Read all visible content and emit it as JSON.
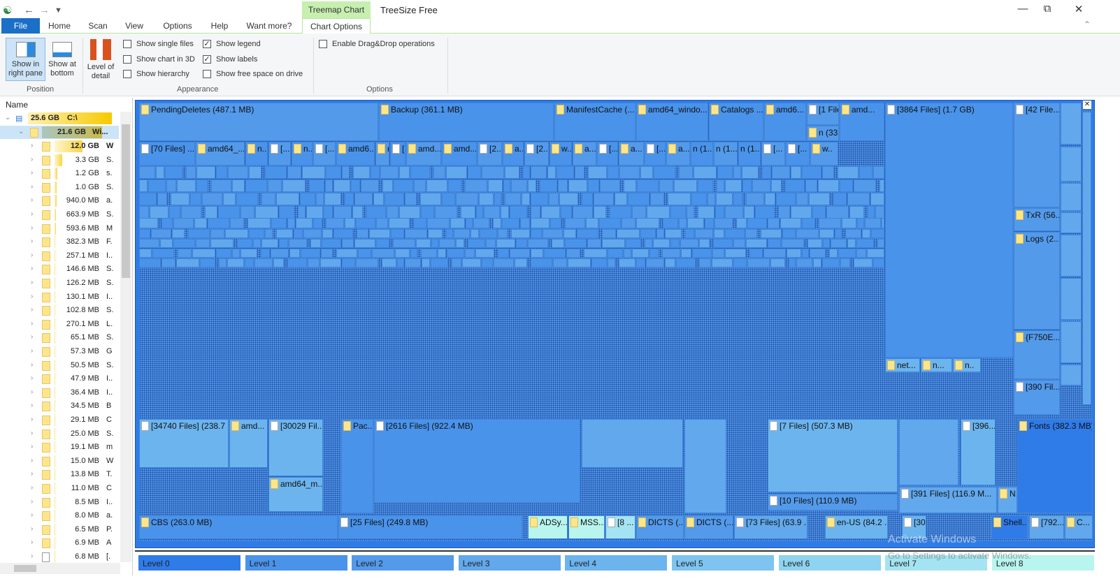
{
  "titlebar": {
    "app_title": "TreeSize Free",
    "context_tab": "Treemap Chart"
  },
  "tabs": [
    "File",
    "Home",
    "Scan",
    "View",
    "Options",
    "Help",
    "Want more?",
    "Chart Options"
  ],
  "ribbon": {
    "position": {
      "label": "Position",
      "show_right": "Show in right pane",
      "show_bottom": "Show at bottom"
    },
    "level_of_detail": "Level of detail",
    "appearance": {
      "label": "Appearance",
      "items": [
        {
          "label": "Show single files",
          "checked": false
        },
        {
          "label": "Show chart in 3D",
          "checked": false
        },
        {
          "label": "Show hierarchy",
          "checked": false
        },
        {
          "label": "Show legend",
          "checked": true
        },
        {
          "label": "Show labels",
          "checked": true
        },
        {
          "label": "Show free space on drive",
          "checked": false
        }
      ]
    },
    "options": {
      "label": "Options",
      "items": [
        {
          "label": "Enable Drag&Drop operations",
          "checked": false
        }
      ]
    }
  },
  "tree": {
    "header": "Name",
    "root": {
      "size": "25.6 GB",
      "name": "C:\\"
    },
    "selected": {
      "size": "21.6 GB",
      "name": "Wi..."
    },
    "items": [
      {
        "size": "12.0 GB",
        "name": "W",
        "icon": "folder"
      },
      {
        "size": "3.3 GB",
        "name": "S.",
        "icon": "folder"
      },
      {
        "size": "1.2 GB",
        "name": "s.",
        "icon": "folder"
      },
      {
        "size": "1.0 GB",
        "name": "S.",
        "icon": "folder"
      },
      {
        "size": "940.0 MB",
        "name": "a.",
        "icon": "folder"
      },
      {
        "size": "663.9 MB",
        "name": "S.",
        "icon": "folder"
      },
      {
        "size": "593.6 MB",
        "name": "M",
        "icon": "folder"
      },
      {
        "size": "382.3 MB",
        "name": "F.",
        "icon": "folder"
      },
      {
        "size": "257.1 MB",
        "name": "I..",
        "icon": "folder"
      },
      {
        "size": "146.6 MB",
        "name": "S.",
        "icon": "folder"
      },
      {
        "size": "126.2 MB",
        "name": "S.",
        "icon": "folder"
      },
      {
        "size": "130.1 MB",
        "name": "I..",
        "icon": "folder"
      },
      {
        "size": "102.8 MB",
        "name": "S.",
        "icon": "folder"
      },
      {
        "size": "270.1 MB",
        "name": "L.",
        "icon": "folder"
      },
      {
        "size": "65.1 MB",
        "name": "S.",
        "icon": "folder"
      },
      {
        "size": "57.3 MB",
        "name": "G",
        "icon": "folder"
      },
      {
        "size": "50.5 MB",
        "name": "S.",
        "icon": "folder"
      },
      {
        "size": "47.9 MB",
        "name": "I..",
        "icon": "folder"
      },
      {
        "size": "36.4 MB",
        "name": "I..",
        "icon": "folder"
      },
      {
        "size": "34.5 MB",
        "name": "B",
        "icon": "folder"
      },
      {
        "size": "29.1 MB",
        "name": "C",
        "icon": "folder"
      },
      {
        "size": "25.0 MB",
        "name": "S.",
        "icon": "folder"
      },
      {
        "size": "19.1 MB",
        "name": "m",
        "icon": "folder"
      },
      {
        "size": "15.0 MB",
        "name": "W",
        "icon": "folder"
      },
      {
        "size": "13.8 MB",
        "name": "T.",
        "icon": "folder"
      },
      {
        "size": "11.0 MB",
        "name": "C",
        "icon": "folder"
      },
      {
        "size": "8.5 MB",
        "name": "I..",
        "icon": "folder"
      },
      {
        "size": "8.0 MB",
        "name": "a.",
        "icon": "folder"
      },
      {
        "size": "6.5 MB",
        "name": "P.",
        "icon": "folder"
      },
      {
        "size": "6.9 MB",
        "name": "A",
        "icon": "folder"
      },
      {
        "size": "6.8 MB",
        "name": "[.",
        "icon": "file"
      }
    ]
  },
  "treemap": {
    "tiles": [
      {
        "label": "PendingDeletes (487.1 MB)",
        "icon": "folder",
        "level": 2
      },
      {
        "label": "Backup (361.1 MB)",
        "icon": "folder",
        "level": 1
      },
      {
        "label": "ManifestCache (...",
        "icon": "folder",
        "level": 1
      },
      {
        "label": "amd64_windo...",
        "icon": "folder",
        "level": 1
      },
      {
        "label": "Catalogs ...",
        "icon": "folder",
        "level": 1
      },
      {
        "label": "amd6...",
        "icon": "folder",
        "level": 1
      },
      {
        "label": "[1 File...",
        "icon": "file",
        "level": 2
      },
      {
        "label": "n (33....",
        "icon": "folder",
        "level": 2
      },
      {
        "label": "amd...",
        "icon": "folder",
        "level": 1
      },
      {
        "label": "[3864 Files] (1.7 GB)",
        "icon": "file",
        "level": 1
      },
      {
        "label": "[42 File...",
        "icon": "file",
        "level": 2
      },
      {
        "label": "TxR (56...",
        "icon": "folder",
        "level": 2
      },
      {
        "label": "Logs (2...",
        "icon": "folder",
        "level": 2
      },
      {
        "label": "{F750E...",
        "icon": "folder",
        "level": 2
      },
      {
        "label": "[390 Fil...",
        "icon": "file",
        "level": 2
      },
      {
        "label": "[34740 Files] (238.7 ...",
        "icon": "file",
        "level": 4
      },
      {
        "label": "amd...",
        "icon": "folder",
        "level": 4
      },
      {
        "label": "[30029 Fil...",
        "icon": "file",
        "level": 4
      },
      {
        "label": "amd64_m...",
        "icon": "folder",
        "level": 4
      },
      {
        "label": "Pac...",
        "icon": "folder",
        "level": 1
      },
      {
        "label": "[2616 Files] (922.4 MB)",
        "icon": "file",
        "level": 1
      },
      {
        "label": "[7 Files] (507.3 MB)",
        "icon": "file",
        "level": 4
      },
      {
        "label": "[10 Files] (110.9 MB)",
        "icon": "file",
        "level": 2
      },
      {
        "label": "[396...",
        "icon": "file",
        "level": 4
      },
      {
        "label": "Fonts (382.3 MB)",
        "icon": "folder",
        "level": 0
      },
      {
        "label": "[391 Files] (116.9 M...",
        "icon": "file",
        "level": 3
      },
      {
        "label": "N...",
        "icon": "folder",
        "level": 3
      },
      {
        "label": "CBS (263.0 MB)",
        "icon": "folder",
        "level": 1
      },
      {
        "label": "[25 Files] (249.8 MB)",
        "icon": "file",
        "level": 1
      },
      {
        "label": "ADSy...",
        "icon": "folder",
        "level": 8
      },
      {
        "label": "MSS...",
        "icon": "folder",
        "level": 8
      },
      {
        "label": "[8 ...",
        "icon": "file",
        "level": 7
      },
      {
        "label": "DICTS (...",
        "icon": "folder",
        "level": 2
      },
      {
        "label": "DICTS (...",
        "icon": "folder",
        "level": 2
      },
      {
        "label": "[73 Files] (63.9 ...",
        "icon": "file",
        "level": 3
      },
      {
        "label": "en-US (84.2 ...",
        "icon": "folder",
        "level": 4
      },
      {
        "label": "[30...",
        "icon": "file",
        "level": 4
      },
      {
        "label": "Shell...",
        "icon": "folder",
        "level": 0
      },
      {
        "label": "[792...",
        "icon": "file",
        "level": 3
      },
      {
        "label": "C...",
        "icon": "folder",
        "level": 3
      },
      {
        "label": "net...",
        "icon": "folder",
        "level": 4
      },
      {
        "label": "n...",
        "icon": "folder",
        "level": 4
      },
      {
        "label": "n..",
        "icon": "folder",
        "level": 4
      }
    ],
    "row_labels": [
      {
        "label": "[70 Files] ...",
        "icon": "file"
      },
      {
        "label": "amd64_...",
        "icon": "folder"
      },
      {
        "label": "n..",
        "icon": "folder"
      },
      {
        "label": "[...",
        "icon": "file"
      },
      {
        "label": "n..",
        "icon": "folder"
      },
      {
        "label": "[...",
        "icon": "file"
      },
      {
        "label": "amd6...",
        "icon": "folder"
      },
      {
        "label": "n.",
        "icon": "folder"
      },
      {
        "label": "[..",
        "icon": "file"
      },
      {
        "label": "amd...",
        "icon": "folder"
      },
      {
        "label": "amd...",
        "icon": "folder"
      },
      {
        "label": "[2...",
        "icon": "file"
      },
      {
        "label": "a...",
        "icon": "folder"
      },
      {
        "label": "[2...",
        "icon": "file"
      },
      {
        "label": "w...",
        "icon": "folder"
      },
      {
        "label": "a...",
        "icon": "folder"
      },
      {
        "label": "[...",
        "icon": "file"
      },
      {
        "label": "a...",
        "icon": "folder"
      },
      {
        "label": "[...",
        "icon": "file"
      },
      {
        "label": "a...",
        "icon": "folder"
      },
      {
        "label": "n (1...",
        "icon": ""
      },
      {
        "label": "n (1...",
        "icon": ""
      },
      {
        "label": "n (1...",
        "icon": ""
      },
      {
        "label": "[...",
        "icon": "file"
      },
      {
        "label": "[...",
        "icon": "file"
      },
      {
        "label": "w..",
        "icon": "folder"
      }
    ]
  },
  "legend": [
    "Level 0",
    "Level 1",
    "Level 2",
    "Level 3",
    "Level 4",
    "Level 5",
    "Level 6",
    "Level 7",
    "Level 8"
  ],
  "level_colors": [
    "#2f7be8",
    "#4a93ea",
    "#539aea",
    "#62a8ec",
    "#6cb4ee",
    "#7dc4f0",
    "#8ed3f0",
    "#a4e4f2",
    "#b8f5ee"
  ],
  "watermark": {
    "line1": "Activate Windows",
    "line2": "Go to Settings to activate Windows."
  }
}
